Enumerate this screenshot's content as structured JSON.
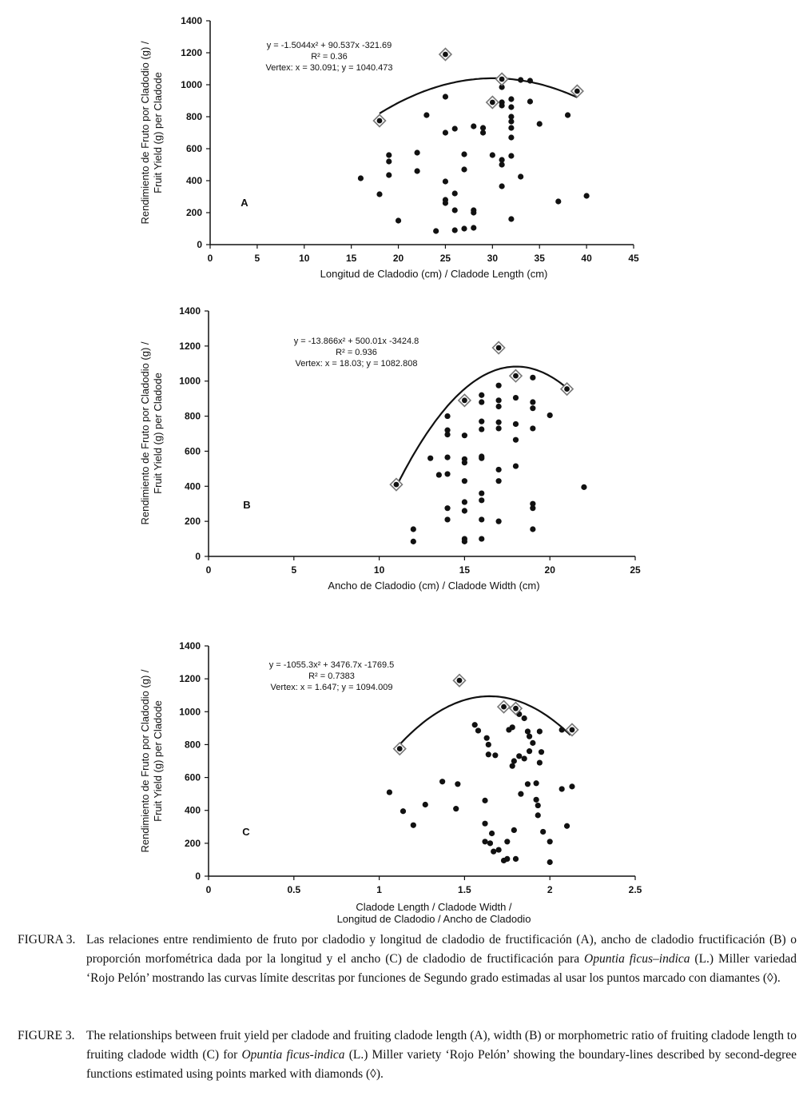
{
  "y_label_1": "Rendimiento de Fruto por Cladodio (g) /",
  "y_label_2": "Fruit Yield (g) per Cladode",
  "chart_data": [
    {
      "type": "scatter",
      "panel_label": "A",
      "xlabel": "Longitud de Cladodio (cm) / Cladode Length (cm)",
      "xlabel2": "",
      "xlim": [
        0,
        45
      ],
      "ylim": [
        0,
        1400
      ],
      "xticks": [
        "0",
        "5",
        "10",
        "15",
        "20",
        "25",
        "30",
        "35",
        "40",
        "45"
      ],
      "yticks": [
        "0",
        "200",
        "400",
        "600",
        "800",
        "1000",
        "1200",
        "1400"
      ],
      "equation": "y = -1.5044x² + 90.537x -321.69",
      "r2": "R² = 0.36",
      "vertex": "Vertex: x = 30.091; y = 1040.473",
      "curve": {
        "a": -1.5044,
        "b": 90.537,
        "c": -321.69,
        "xmin": 18,
        "xmax": 39
      },
      "diamonds": [
        [
          18,
          775
        ],
        [
          25,
          1190
        ],
        [
          30,
          890
        ],
        [
          31,
          1035
        ],
        [
          39,
          960
        ]
      ],
      "points": [
        [
          16,
          415
        ],
        [
          18,
          315
        ],
        [
          19,
          560
        ],
        [
          19,
          520
        ],
        [
          19,
          435
        ],
        [
          20,
          150
        ],
        [
          22,
          575
        ],
        [
          22,
          460
        ],
        [
          23,
          810
        ],
        [
          24,
          85
        ],
        [
          25,
          925
        ],
        [
          25,
          700
        ],
        [
          25,
          395
        ],
        [
          25,
          280
        ],
        [
          25,
          260
        ],
        [
          26,
          725
        ],
        [
          26,
          320
        ],
        [
          26,
          215
        ],
        [
          26,
          90
        ],
        [
          27,
          565
        ],
        [
          27,
          470
        ],
        [
          27,
          100
        ],
        [
          28,
          740
        ],
        [
          28,
          215
        ],
        [
          28,
          200
        ],
        [
          28,
          105
        ],
        [
          29,
          730
        ],
        [
          29,
          700
        ],
        [
          30,
          905
        ],
        [
          30,
          880
        ],
        [
          30,
          560
        ],
        [
          31,
          985
        ],
        [
          31,
          890
        ],
        [
          31,
          870
        ],
        [
          31,
          530
        ],
        [
          31,
          500
        ],
        [
          31,
          365
        ],
        [
          32,
          910
        ],
        [
          32,
          860
        ],
        [
          32,
          800
        ],
        [
          32,
          770
        ],
        [
          32,
          730
        ],
        [
          32,
          670
        ],
        [
          32,
          555
        ],
        [
          32,
          160
        ],
        [
          33,
          1030
        ],
        [
          33,
          425
        ],
        [
          34,
          1025
        ],
        [
          34,
          895
        ],
        [
          35,
          755
        ],
        [
          37,
          270
        ],
        [
          38,
          810
        ],
        [
          40,
          305
        ]
      ]
    },
    {
      "type": "scatter",
      "panel_label": "B",
      "xlabel": "Ancho de Cladodio (cm) / Cladode Width (cm)",
      "xlabel2": "",
      "xlim": [
        0,
        25
      ],
      "ylim": [
        0,
        1400
      ],
      "xticks": [
        "0",
        "5",
        "10",
        "15",
        "20",
        "25"
      ],
      "yticks": [
        "0",
        "200",
        "400",
        "600",
        "800",
        "1000",
        "1200",
        "1400"
      ],
      "equation": "y = -13.866x² + 500.01x -3424.8",
      "r2": "R² = 0.936",
      "vertex": "Vertex: x = 18.03; y = 1082.808",
      "curve": {
        "a": -13.866,
        "b": 500.01,
        "c": -3424.8,
        "xmin": 11,
        "xmax": 21
      },
      "diamonds": [
        [
          11,
          410
        ],
        [
          15,
          890
        ],
        [
          17,
          1190
        ],
        [
          18,
          1030
        ],
        [
          21,
          955
        ]
      ],
      "points": [
        [
          12,
          155
        ],
        [
          12,
          85
        ],
        [
          13,
          560
        ],
        [
          13.5,
          465
        ],
        [
          14,
          800
        ],
        [
          14,
          720
        ],
        [
          14,
          695
        ],
        [
          14,
          565
        ],
        [
          14,
          470
        ],
        [
          14,
          275
        ],
        [
          14,
          210
        ],
        [
          15,
          690
        ],
        [
          15,
          555
        ],
        [
          15,
          535
        ],
        [
          15,
          430
        ],
        [
          15,
          310
        ],
        [
          15,
          260
        ],
        [
          15,
          100
        ],
        [
          15,
          85
        ],
        [
          16,
          920
        ],
        [
          16,
          880
        ],
        [
          16,
          770
        ],
        [
          16,
          725
        ],
        [
          16,
          570
        ],
        [
          16,
          560
        ],
        [
          16,
          360
        ],
        [
          16,
          320
        ],
        [
          16,
          210
        ],
        [
          16,
          100
        ],
        [
          17,
          975
        ],
        [
          17,
          890
        ],
        [
          17,
          855
        ],
        [
          17,
          765
        ],
        [
          17,
          730
        ],
        [
          17,
          495
        ],
        [
          17,
          430
        ],
        [
          17,
          200
        ],
        [
          18,
          905
        ],
        [
          18,
          755
        ],
        [
          18,
          665
        ],
        [
          18,
          515
        ],
        [
          19,
          1020
        ],
        [
          19,
          880
        ],
        [
          19,
          845
        ],
        [
          19,
          730
        ],
        [
          19,
          300
        ],
        [
          19,
          275
        ],
        [
          19,
          155
        ],
        [
          20,
          805
        ],
        [
          22,
          395
        ]
      ]
    },
    {
      "type": "scatter",
      "panel_label": "C",
      "xlabel": "Cladode Length / Cladode Width /",
      "xlabel2": "Longitud de Cladodio / Ancho de Cladodio",
      "xlim": [
        0,
        2.5
      ],
      "ylim": [
        0,
        1400
      ],
      "xticks": [
        "0",
        "0.5",
        "1",
        "1.5",
        "2",
        "2.5"
      ],
      "yticks": [
        "0",
        "200",
        "400",
        "600",
        "800",
        "1000",
        "1200",
        "1400"
      ],
      "equation": "y = -1055.3x² + 3476.7x -1769.5",
      "r2": "R² = 0.7383",
      "vertex": "Vertex: x = 1.647; y = 1094.009",
      "curve": {
        "a": -1055.3,
        "b": 3476.7,
        "c": -1769.5,
        "xmin": 1.12,
        "xmax": 2.12
      },
      "diamonds": [
        [
          1.12,
          775
        ],
        [
          1.47,
          1190
        ],
        [
          1.73,
          1030
        ],
        [
          1.8,
          1020
        ],
        [
          2.13,
          890
        ]
      ],
      "points": [
        [
          1.06,
          510
        ],
        [
          1.14,
          395
        ],
        [
          1.2,
          310
        ],
        [
          1.27,
          435
        ],
        [
          1.37,
          575
        ],
        [
          1.45,
          410
        ],
        [
          1.46,
          560
        ],
        [
          1.56,
          920
        ],
        [
          1.58,
          885
        ],
        [
          1.62,
          460
        ],
        [
          1.62,
          320
        ],
        [
          1.62,
          210
        ],
        [
          1.63,
          840
        ],
        [
          1.64,
          800
        ],
        [
          1.64,
          740
        ],
        [
          1.65,
          200
        ],
        [
          1.66,
          260
        ],
        [
          1.67,
          150
        ],
        [
          1.68,
          735
        ],
        [
          1.7,
          160
        ],
        [
          1.72,
          1030
        ],
        [
          1.73,
          95
        ],
        [
          1.75,
          210
        ],
        [
          1.75,
          105
        ],
        [
          1.76,
          890
        ],
        [
          1.78,
          905
        ],
        [
          1.78,
          670
        ],
        [
          1.79,
          700
        ],
        [
          1.79,
          280
        ],
        [
          1.8,
          105
        ],
        [
          1.82,
          985
        ],
        [
          1.82,
          730
        ],
        [
          1.83,
          500
        ],
        [
          1.85,
          960
        ],
        [
          1.85,
          715
        ],
        [
          1.87,
          880
        ],
        [
          1.87,
          560
        ],
        [
          1.88,
          760
        ],
        [
          1.88,
          850
        ],
        [
          1.9,
          810
        ],
        [
          1.92,
          565
        ],
        [
          1.92,
          465
        ],
        [
          1.93,
          430
        ],
        [
          1.93,
          370
        ],
        [
          1.94,
          880
        ],
        [
          1.94,
          690
        ],
        [
          1.95,
          755
        ],
        [
          1.96,
          270
        ],
        [
          2,
          210
        ],
        [
          2,
          85
        ],
        [
          2.07,
          890
        ],
        [
          2.07,
          530
        ],
        [
          2.1,
          305
        ],
        [
          2.13,
          545
        ]
      ]
    }
  ],
  "captions": [
    {
      "label": "FIGURA 3.",
      "parts": [
        {
          "t": "Las relaciones entre rendimiento de fruto por cladodio y longitud de cladodio de fructificación (A), ancho de cladodio fructificación (B) o proporción morfométrica dada por la longitud y el ancho (C) de cladodio de fructificación para ",
          "i": false
        },
        {
          "t": "Opuntia ficus–indica",
          "i": true
        },
        {
          "t": " (L.) Miller variedad ‘Rojo Pelón’ mostrando las curvas límite descritas por funciones de Segundo grado estimadas al usar los puntos marcado con diamantes (◊).",
          "i": false
        }
      ]
    },
    {
      "label": "FIGURE 3.",
      "parts": [
        {
          "t": "The relationships between fruit yield per cladode and fruiting cladode length (A), width (B) or morphometric ratio of fruiting cladode length to fruiting cladode width (C) for ",
          "i": false
        },
        {
          "t": "Opuntia ficus-indica",
          "i": true
        },
        {
          "t": " (L.) Miller variety ‘Rojo Pelón’ showing the boundary-lines described by second-degree functions estimated using points marked with diamonds (◊).",
          "i": false
        }
      ]
    }
  ]
}
